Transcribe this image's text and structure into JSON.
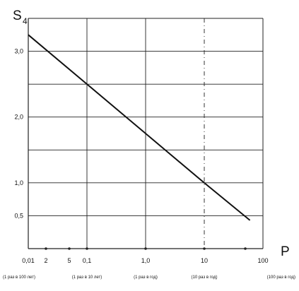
{
  "chart_data": {
    "type": "line",
    "title": "",
    "ylabel": "S",
    "ylabel_subscript": "4",
    "xlabel": "P",
    "x_scale": "log",
    "xlim": [
      0.01,
      100
    ],
    "ylim": [
      0.0,
      3.5
    ],
    "grid": true,
    "x_tick_labels": [
      {
        "value": 0.01,
        "label": "0,01"
      },
      {
        "value": 0.1,
        "label": "0,1"
      },
      {
        "value": 1,
        "label": "1,0"
      },
      {
        "value": 10,
        "label": "10"
      },
      {
        "value": 100,
        "label": "100"
      }
    ],
    "x_minor_labels": [
      {
        "value": 0.02,
        "label": "2"
      },
      {
        "value": 0.05,
        "label": "5"
      }
    ],
    "x_sub_labels": [
      {
        "value": 0.01,
        "label": "(1 раз в 100 лет)"
      },
      {
        "value": 0.1,
        "label": "(1 раз в 10 лет)"
      },
      {
        "value": 1,
        "label": "(1 раз в год)"
      },
      {
        "value": 10,
        "label": "(10 раз в год)"
      },
      {
        "value": 100,
        "label": "(100 раз в год)"
      }
    ],
    "y_tick_labels": [
      {
        "value": 3.0,
        "label": "3,0"
      },
      {
        "value": 2.0,
        "label": "2,0"
      },
      {
        "value": 1.0,
        "label": "1,0"
      },
      {
        "value": 0.5,
        "label": "0,5"
      }
    ],
    "y_gridlines": [
      0.5,
      1.0,
      1.5,
      2.0,
      2.5,
      3.0
    ],
    "axis_markers_x": [
      0.02,
      0.05,
      0.1,
      1,
      10,
      50
    ],
    "series": [
      {
        "x": [
          0.01,
          0.1,
          1,
          10,
          60
        ],
        "y": [
          3.25,
          2.5,
          1.75,
          1.0,
          0.43
        ]
      }
    ],
    "colors": {
      "line": "#111111",
      "grid": "#222222"
    }
  }
}
